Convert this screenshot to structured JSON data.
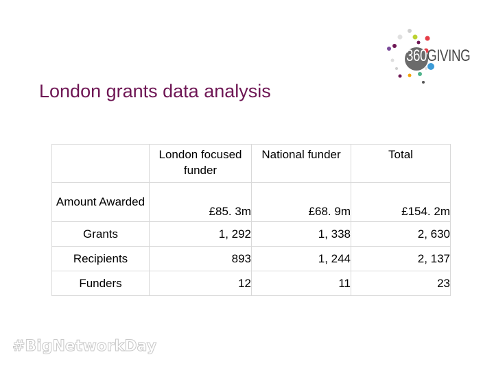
{
  "logo": {
    "number": "360",
    "word": "GIVING",
    "circle_color": "#6b6b6b",
    "dot_colors": [
      "#6e1654",
      "#bcd232",
      "#e63c46",
      "#3c9bd7",
      "#f5a50a",
      "#50b48c"
    ]
  },
  "title": "London grants data analysis",
  "table": {
    "headers": [
      "",
      "London focused funder",
      "National funder",
      "Total"
    ],
    "rows": [
      {
        "label": "Amount Awarded",
        "values": [
          "£85. 3m",
          "£68. 9m",
          "£154. 2m"
        ]
      },
      {
        "label": "Grants",
        "values": [
          "1, 292",
          "1, 338",
          "2, 630"
        ]
      },
      {
        "label": "Recipients",
        "values": [
          "893",
          "1, 244",
          "2, 137"
        ]
      },
      {
        "label": "Funders",
        "values": [
          "12",
          "11",
          "23"
        ]
      }
    ]
  },
  "hashtag": "#BigNetworkDay",
  "colors": {
    "title": "#6e1654",
    "border": "#d9d9d9"
  }
}
